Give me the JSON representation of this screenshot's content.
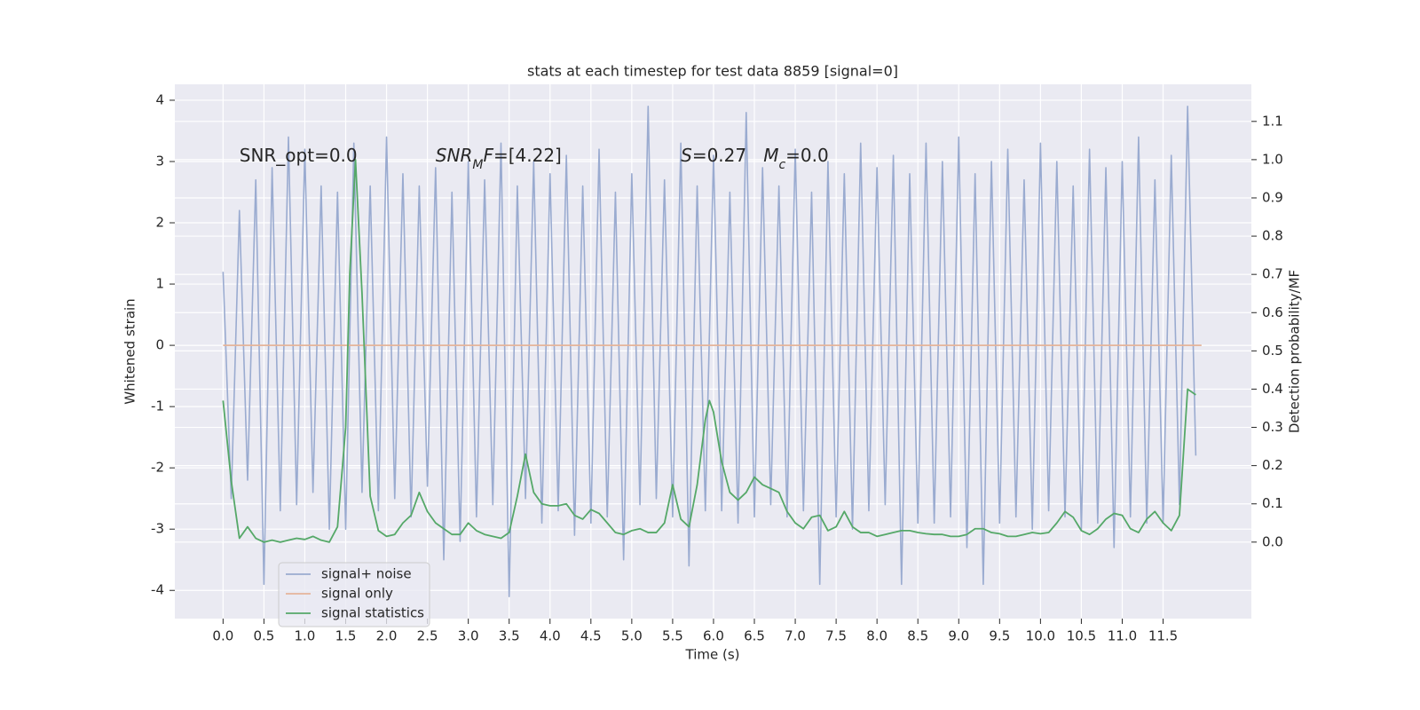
{
  "chart_data": {
    "type": "line",
    "title": "stats at each timestep for test data 8859 [signal=0]",
    "xlabel": "Time (s)",
    "ylabel": "Whitened strain",
    "y2label": "Detection probability/MF",
    "xlim": [
      -0.59,
      12.58
    ],
    "ylim": [
      -4.46,
      4.26
    ],
    "y2lim": [
      -0.2,
      1.197
    ],
    "xticks": [
      {
        "value": 0,
        "label": "0.0"
      },
      {
        "value": 0.5,
        "label": "0.5"
      },
      {
        "value": 1,
        "label": "1.0"
      },
      {
        "value": 1.5,
        "label": "1.5"
      },
      {
        "value": 2,
        "label": "2.0"
      },
      {
        "value": 2.5,
        "label": "2.5"
      },
      {
        "value": 3,
        "label": "3.0"
      },
      {
        "value": 3.5,
        "label": "3.5"
      },
      {
        "value": 4,
        "label": "4.0"
      },
      {
        "value": 4.5,
        "label": "4.5"
      },
      {
        "value": 5,
        "label": "5.0"
      },
      {
        "value": 5.5,
        "label": "5.5"
      },
      {
        "value": 6,
        "label": "6.0"
      },
      {
        "value": 6.5,
        "label": "6.5"
      },
      {
        "value": 7,
        "label": "7.0"
      },
      {
        "value": 7.5,
        "label": "7.5"
      },
      {
        "value": 8,
        "label": "8.0"
      },
      {
        "value": 8.5,
        "label": "8.5"
      },
      {
        "value": 9,
        "label": "9.0"
      },
      {
        "value": 9.5,
        "label": "9.5"
      },
      {
        "value": 10,
        "label": "10.0"
      },
      {
        "value": 10.5,
        "label": "10.5"
      },
      {
        "value": 11,
        "label": "11.0"
      },
      {
        "value": 11.5,
        "label": "11.5"
      }
    ],
    "yticks": [
      -4,
      -3,
      -2,
      -1,
      0,
      1,
      2,
      3,
      4
    ],
    "y2ticks": [
      {
        "value": 0,
        "label": "0.0"
      },
      {
        "value": 0.1,
        "label": "0.1"
      },
      {
        "value": 0.2,
        "label": "0.2"
      },
      {
        "value": 0.3,
        "label": "0.3"
      },
      {
        "value": 0.4,
        "label": "0.4"
      },
      {
        "value": 0.5,
        "label": "0.5"
      },
      {
        "value": 0.6,
        "label": "0.6"
      },
      {
        "value": 0.7,
        "label": "0.7"
      },
      {
        "value": 0.8,
        "label": "0.8"
      },
      {
        "value": 0.9,
        "label": "0.9"
      },
      {
        "value": 1,
        "label": "1.0"
      },
      {
        "value": 1.1,
        "label": "1.1"
      }
    ],
    "grid": true,
    "legend": "lower left",
    "series": [
      {
        "name": "signal+ noise",
        "color": "#9aabd0",
        "axis": "y",
        "x": [
          0,
          0.1,
          0.2,
          0.3,
          0.4,
          0.5,
          0.6,
          0.7,
          0.8,
          0.9,
          1.0,
          1.1,
          1.2,
          1.3,
          1.4,
          1.5,
          1.6,
          1.7,
          1.8,
          1.9,
          2.0,
          2.1,
          2.2,
          2.3,
          2.4,
          2.5,
          2.6,
          2.7,
          2.8,
          2.9,
          3.0,
          3.1,
          3.2,
          3.3,
          3.4,
          3.5,
          3.6,
          3.7,
          3.8,
          3.9,
          4.0,
          4.1,
          4.2,
          4.3,
          4.4,
          4.5,
          4.6,
          4.7,
          4.8,
          4.9,
          5.0,
          5.1,
          5.2,
          5.3,
          5.4,
          5.5,
          5.6,
          5.7,
          5.8,
          5.9,
          6.0,
          6.1,
          6.2,
          6.3,
          6.4,
          6.5,
          6.6,
          6.7,
          6.8,
          6.9,
          7.0,
          7.1,
          7.2,
          7.3,
          7.4,
          7.5,
          7.6,
          7.7,
          7.8,
          7.9,
          8.0,
          8.1,
          8.2,
          8.3,
          8.4,
          8.5,
          8.6,
          8.7,
          8.8,
          8.9,
          9.0,
          9.1,
          9.2,
          9.3,
          9.4,
          9.5,
          9.6,
          9.7,
          9.8,
          9.9,
          10.0,
          10.1,
          10.2,
          10.3,
          10.4,
          10.5,
          10.6,
          10.7,
          10.8,
          10.9,
          11.0,
          11.1,
          11.2,
          11.3,
          11.4,
          11.5,
          11.6,
          11.7,
          11.8,
          11.9
        ],
        "values": [
          1.2,
          -2.5,
          2.2,
          -2.2,
          2.7,
          -3.9,
          2.9,
          -2.7,
          3.4,
          -2.6,
          3.2,
          -2.4,
          2.6,
          -3.0,
          2.5,
          -3.0,
          3.3,
          -2.4,
          2.6,
          -2.7,
          3.4,
          -2.5,
          2.8,
          -2.8,
          2.6,
          -2.3,
          2.9,
          -3.5,
          2.5,
          -3.2,
          3.0,
          -2.8,
          2.7,
          -2.6,
          3.3,
          -4.1,
          2.6,
          -2.5,
          3.0,
          -2.9,
          2.8,
          -2.7,
          3.1,
          -3.1,
          2.6,
          -2.9,
          3.2,
          -2.8,
          2.5,
          -3.5,
          2.8,
          -2.6,
          3.9,
          -2.5,
          2.7,
          -2.8,
          3.3,
          -3.6,
          2.6,
          -2.7,
          3.1,
          -2.7,
          2.5,
          -2.9,
          3.8,
          -2.8,
          2.9,
          -2.6,
          2.6,
          -2.8,
          3.2,
          -2.7,
          2.5,
          -3.9,
          3.0,
          -2.8,
          2.8,
          -3.0,
          3.3,
          -2.7,
          2.9,
          -2.6,
          3.1,
          -3.9,
          2.8,
          -2.9,
          3.3,
          -2.9,
          3.0,
          -2.8,
          3.4,
          -3.3,
          2.8,
          -3.9,
          3.0,
          -2.9,
          3.2,
          -2.8,
          2.7,
          -3.0,
          3.3,
          -2.7,
          3.0,
          -2.8,
          2.6,
          -3.0,
          3.2,
          -2.9,
          2.9,
          -3.3,
          3.0,
          -2.8,
          3.4,
          -2.9,
          2.7,
          -2.9,
          3.1,
          -2.6,
          3.9,
          -1.8
        ]
      },
      {
        "name": "signal only",
        "color": "#e5b49a",
        "axis": "y",
        "x": [
          0,
          11.97
        ],
        "values": [
          0,
          0
        ]
      },
      {
        "name": "signal statistics",
        "color": "#55a868",
        "axis": "y2",
        "x": [
          0,
          0.1,
          0.2,
          0.3,
          0.4,
          0.5,
          0.6,
          0.7,
          0.8,
          0.9,
          1.0,
          1.1,
          1.2,
          1.3,
          1.4,
          1.5,
          1.55,
          1.62,
          1.7,
          1.8,
          1.9,
          2.0,
          2.1,
          2.2,
          2.3,
          2.4,
          2.5,
          2.6,
          2.7,
          2.8,
          2.9,
          3.0,
          3.1,
          3.2,
          3.3,
          3.4,
          3.5,
          3.6,
          3.7,
          3.8,
          3.9,
          4.0,
          4.1,
          4.2,
          4.3,
          4.4,
          4.5,
          4.6,
          4.7,
          4.8,
          4.9,
          5.0,
          5.1,
          5.2,
          5.3,
          5.4,
          5.5,
          5.6,
          5.7,
          5.8,
          5.9,
          5.95,
          6.0,
          6.1,
          6.2,
          6.3,
          6.4,
          6.5,
          6.6,
          6.7,
          6.8,
          6.9,
          7.0,
          7.1,
          7.2,
          7.3,
          7.4,
          7.5,
          7.6,
          7.7,
          7.8,
          7.9,
          8.0,
          8.1,
          8.2,
          8.3,
          8.4,
          8.5,
          8.6,
          8.7,
          8.8,
          8.9,
          9.0,
          9.1,
          9.2,
          9.3,
          9.4,
          9.5,
          9.6,
          9.7,
          9.8,
          9.9,
          10.0,
          10.1,
          10.2,
          10.3,
          10.4,
          10.5,
          10.6,
          10.7,
          10.8,
          10.9,
          11.0,
          11.1,
          11.2,
          11.3,
          11.4,
          11.5,
          11.6,
          11.7,
          11.8,
          11.9
        ],
        "values": [
          0.37,
          0.16,
          0.01,
          0.04,
          0.01,
          0.0,
          0.005,
          0.0,
          0.005,
          0.01,
          0.007,
          0.015,
          0.005,
          0.0,
          0.04,
          0.3,
          0.7,
          1.0,
          0.65,
          0.12,
          0.03,
          0.015,
          0.02,
          0.05,
          0.07,
          0.13,
          0.08,
          0.05,
          0.035,
          0.02,
          0.02,
          0.05,
          0.03,
          0.02,
          0.015,
          0.01,
          0.025,
          0.12,
          0.23,
          0.13,
          0.1,
          0.095,
          0.095,
          0.1,
          0.07,
          0.06,
          0.085,
          0.075,
          0.05,
          0.025,
          0.02,
          0.03,
          0.035,
          0.025,
          0.025,
          0.05,
          0.15,
          0.06,
          0.04,
          0.15,
          0.32,
          0.37,
          0.34,
          0.21,
          0.13,
          0.11,
          0.13,
          0.17,
          0.15,
          0.14,
          0.13,
          0.08,
          0.05,
          0.035,
          0.065,
          0.07,
          0.03,
          0.04,
          0.08,
          0.04,
          0.025,
          0.025,
          0.015,
          0.02,
          0.025,
          0.03,
          0.03,
          0.025,
          0.022,
          0.02,
          0.02,
          0.015,
          0.015,
          0.02,
          0.035,
          0.035,
          0.025,
          0.022,
          0.015,
          0.015,
          0.02,
          0.025,
          0.022,
          0.025,
          0.05,
          0.08,
          0.065,
          0.03,
          0.02,
          0.035,
          0.06,
          0.075,
          0.07,
          0.035,
          0.025,
          0.06,
          0.08,
          0.05,
          0.03,
          0.07,
          0.4,
          0.385
        ]
      }
    ],
    "annotations": [
      {
        "x": 0.2,
        "y": 3.0,
        "parts": [
          {
            "text": "SNR_opt=0.0",
            "style": "normal"
          }
        ]
      },
      {
        "x": 2.6,
        "y": 3.0,
        "parts": [
          {
            "text": "SNR",
            "style": "italic"
          },
          {
            "text": "M",
            "style": "sub-italic"
          },
          {
            "text": "F",
            "style": "italic"
          },
          {
            "text": "=[4.22]",
            "style": "normal"
          }
        ]
      },
      {
        "x": 5.6,
        "y": 3.0,
        "parts": [
          {
            "text": "S",
            "style": "italic"
          },
          {
            "text": "=0.27   ",
            "style": "normal"
          },
          {
            "text": "M",
            "style": "italic"
          },
          {
            "text": "c",
            "style": "sub-italic"
          },
          {
            "text": "=0.0",
            "style": "normal"
          }
        ]
      }
    ]
  }
}
